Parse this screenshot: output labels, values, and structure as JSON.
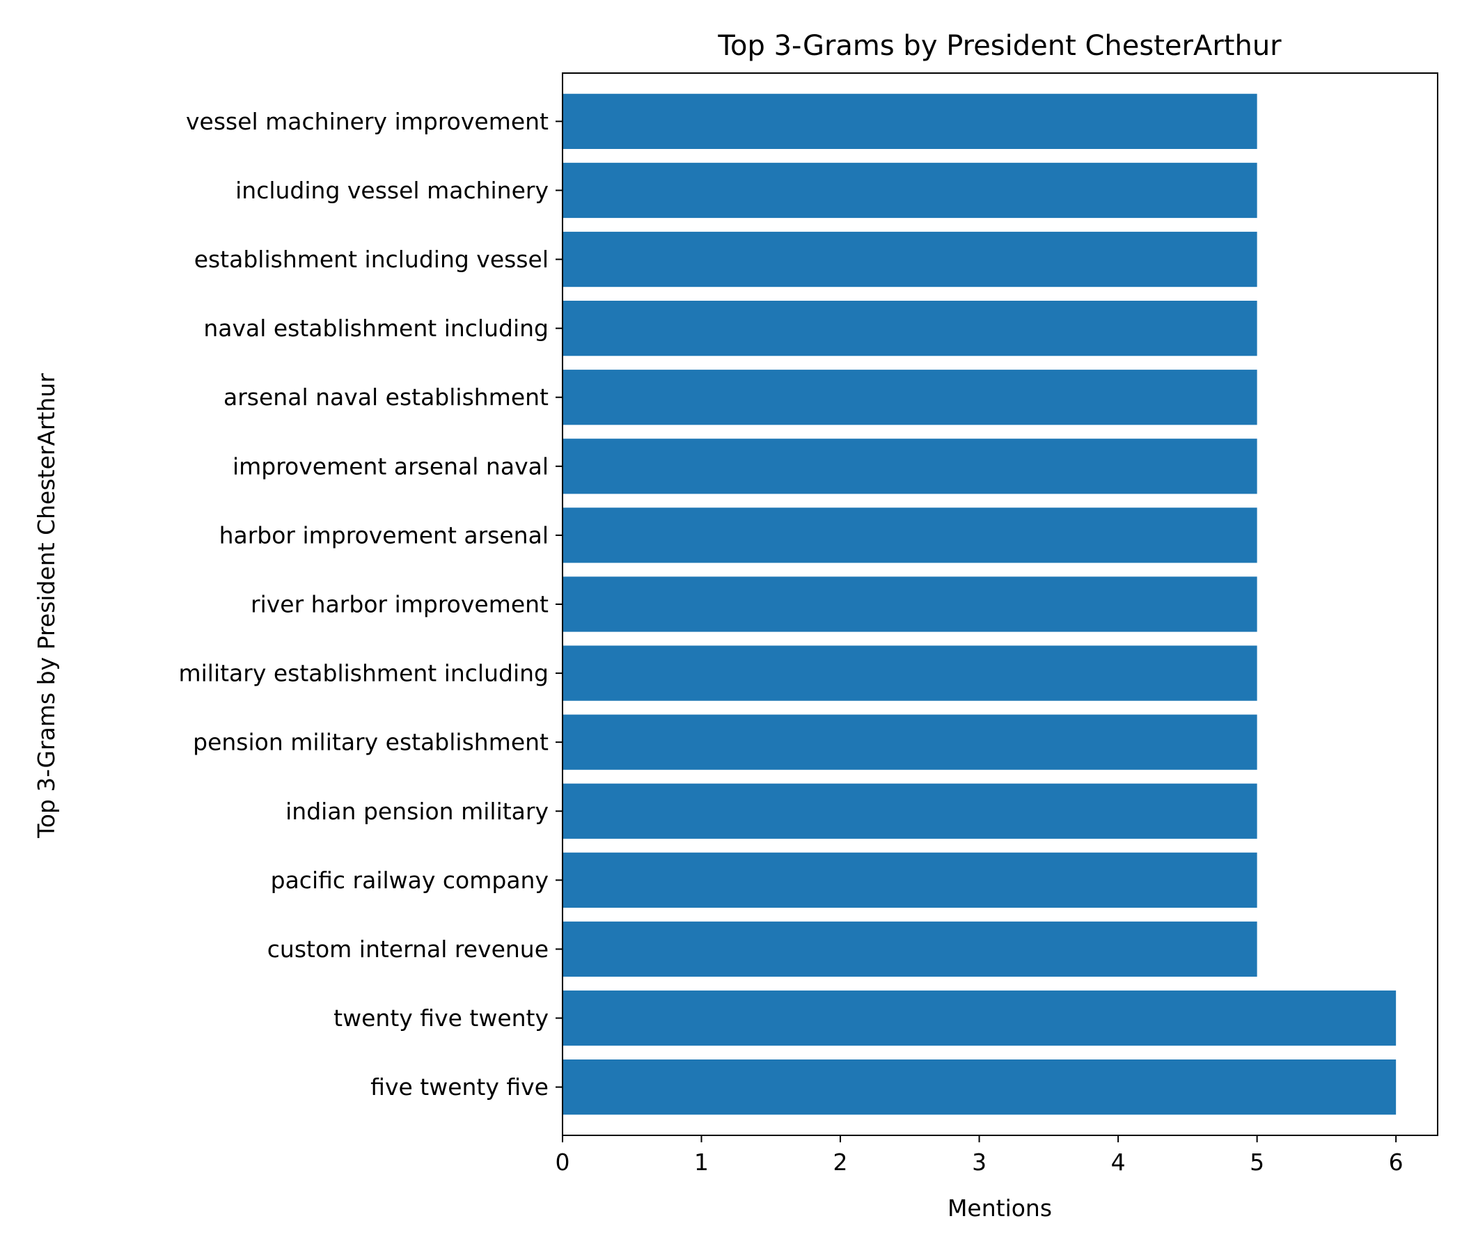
{
  "chart_data": {
    "type": "bar",
    "orientation": "horizontal",
    "title": "Top 3-Grams by President ChesterArthur",
    "xlabel": "Mentions",
    "ylabel": "Top 3-Grams by President ChesterArthur",
    "xlim": [
      0,
      6.3
    ],
    "xticks": [
      "0",
      "1",
      "2",
      "3",
      "4",
      "5",
      "6"
    ],
    "grid": false,
    "legend": "none",
    "bar_color": "#1f77b4",
    "categories": [
      "five twenty five",
      "twenty five twenty",
      "custom internal revenue",
      "pacific railway company",
      "indian pension military",
      "pension military establishment",
      "military establishment including",
      "river harbor improvement",
      "harbor improvement arsenal",
      "improvement arsenal naval",
      "arsenal naval establishment",
      "naval establishment including",
      "establishment including vessel",
      "including vessel machinery",
      "vessel machinery improvement"
    ],
    "values": [
      6,
      6,
      5,
      5,
      5,
      5,
      5,
      5,
      5,
      5,
      5,
      5,
      5,
      5,
      5
    ]
  }
}
